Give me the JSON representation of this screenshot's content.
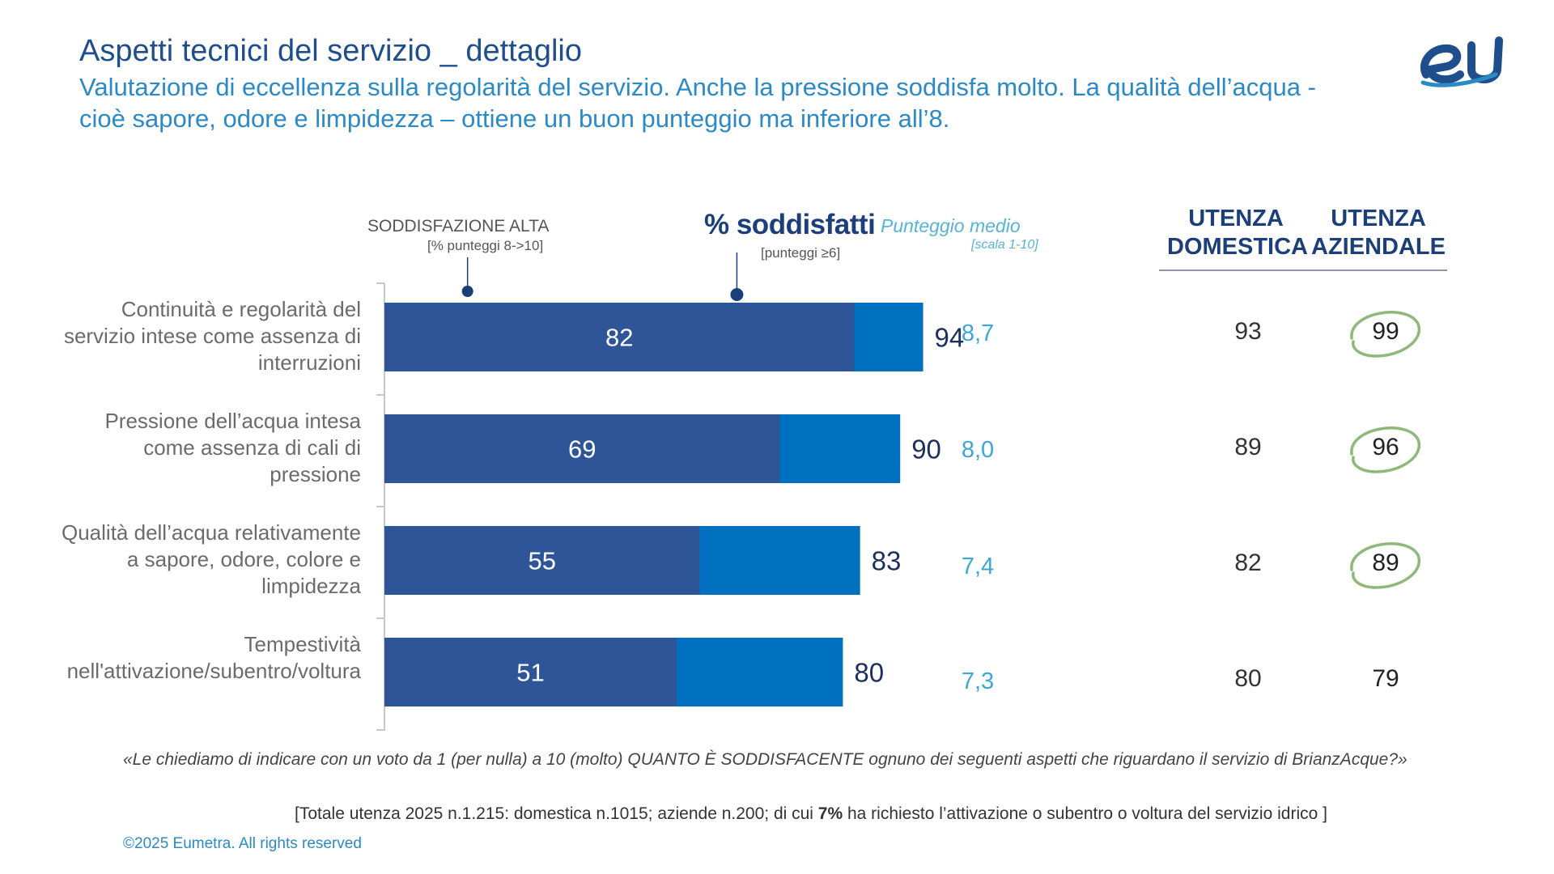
{
  "title": "Aspetti tecnici del servizio _ dettaglio",
  "subtitle": "Valutazione di eccellenza sulla regolarità del servizio. Anche la pressione soddisfa molto. La qualità dell’acqua  - cioè sapore, odore e limpidezza – ottiene un buon punteggio ma inferiore all’8.",
  "logo_text": "eU",
  "headers": {
    "alta": "SODDISFAZIONE ALTA",
    "alta_note": "[% punteggi 8->10]",
    "soddisfatti": "% soddisfatti",
    "soddisfatti_note": "[punteggi ≥6]",
    "media": "Punteggio medio",
    "media_note": "[scala 1-10]",
    "domestica": "UTENZA DOMESTICA",
    "aziendale": "UTENZA AZIENDALE"
  },
  "chart_data": {
    "type": "bar",
    "orientation": "horizontal",
    "categories": [
      "Continuità e regolarità del servizio intese come assenza di interruzioni",
      "Pressione dell’acqua intesa come assenza di cali di pressione",
      "Qualità dell’acqua relativamente a sapore, odore, colore e limpidezza",
      "Tempestività nell'attivazione/subentro/voltura"
    ],
    "series": [
      {
        "name": "SODDISFAZIONE ALTA [% punteggi 8->10]",
        "values": [
          82,
          69,
          55,
          51
        ],
        "color": "#2e5597"
      },
      {
        "name": "% soddisfatti [punteggi ≥6]",
        "values": [
          94,
          90,
          83,
          80
        ],
        "color": "#0070c0"
      }
    ],
    "punteggio_medio": [
      "8,7",
      "8,0",
      "7,4",
      "7,3"
    ],
    "utenza_domestica": [
      "93",
      "89",
      "82",
      "80"
    ],
    "utenza_aziendale": [
      "99",
      "96",
      "89",
      "79"
    ],
    "aziendale_highlighted": [
      true,
      true,
      true,
      false
    ],
    "highlight_color": "#8fb87a",
    "xlim": [
      0,
      100
    ]
  },
  "footnote": {
    "question": "«Le chiediamo di indicare con un voto da 1 (per nulla) a 10 (molto) QUANTO È SODDISFACENTE ognuno dei seguenti aspetti che riguardano il servizio di BrianzAcque?»",
    "totale_pre": "[Totale utenza 2025 n.1.215: domestica n.1015; aziende n.200; di cui ",
    "totale_bold": "7%",
    "totale_post": " ha richiesto  l’attivazione o subentro o voltura del servizio idrico ]",
    "copyright": "©2025 Eumetra. All rights reserved"
  }
}
